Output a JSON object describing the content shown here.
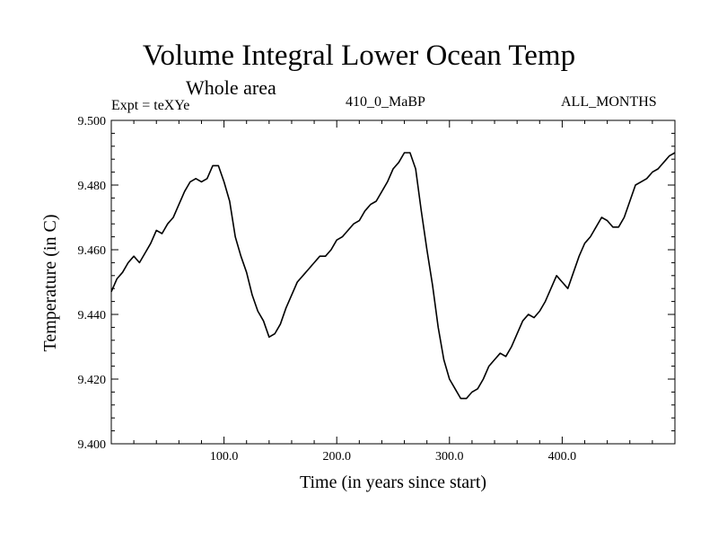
{
  "chart_data": {
    "type": "line",
    "title": "Volume Integral Lower Ocean Temp",
    "subtitle": "Whole area",
    "info_left": "Expt = teXYe",
    "info_center": "410_0_MaBP",
    "info_right": "ALL_MONTHS",
    "xlabel": "Time (in years since start)",
    "ylabel": "Temperature (in C)",
    "xlim": [
      0,
      500
    ],
    "ylim": [
      9.4,
      9.5
    ],
    "x_ticks": [
      100,
      200,
      300,
      400
    ],
    "x_tick_labels": [
      "100.0",
      "200.0",
      "300.0",
      "400.0"
    ],
    "y_ticks": [
      9.4,
      9.42,
      9.44,
      9.46,
      9.48,
      9.5
    ],
    "y_tick_labels": [
      "9.400",
      "9.420",
      "9.440",
      "9.460",
      "9.480",
      "9.500"
    ],
    "grid": false,
    "series": [
      {
        "color": "#000000",
        "x": [
          0,
          5,
          10,
          15,
          20,
          25,
          30,
          35,
          40,
          45,
          50,
          55,
          60,
          65,
          70,
          75,
          80,
          85,
          90,
          95,
          100,
          105,
          110,
          115,
          120,
          125,
          130,
          135,
          140,
          145,
          150,
          155,
          160,
          165,
          170,
          175,
          180,
          185,
          190,
          195,
          200,
          205,
          210,
          215,
          220,
          225,
          230,
          235,
          240,
          245,
          250,
          255,
          260,
          265,
          270,
          275,
          280,
          285,
          290,
          295,
          300,
          305,
          310,
          315,
          320,
          325,
          330,
          335,
          340,
          345,
          350,
          355,
          360,
          365,
          370,
          375,
          380,
          385,
          390,
          395,
          400,
          405,
          410,
          415,
          420,
          425,
          430,
          435,
          440,
          445,
          450,
          455,
          460,
          465,
          470,
          475,
          480,
          485,
          490,
          495,
          500
        ],
        "y": [
          9.447,
          9.451,
          9.453,
          9.456,
          9.458,
          9.456,
          9.459,
          9.462,
          9.466,
          9.465,
          9.468,
          9.47,
          9.474,
          9.478,
          9.481,
          9.482,
          9.481,
          9.482,
          9.486,
          9.486,
          9.481,
          9.475,
          9.464,
          9.458,
          9.453,
          9.446,
          9.441,
          9.438,
          9.433,
          9.434,
          9.437,
          9.442,
          9.446,
          9.45,
          9.452,
          9.454,
          9.456,
          9.458,
          9.458,
          9.46,
          9.463,
          9.464,
          9.466,
          9.468,
          9.469,
          9.472,
          9.474,
          9.475,
          9.478,
          9.481,
          9.485,
          9.487,
          9.49,
          9.49,
          9.485,
          9.472,
          9.46,
          9.449,
          9.436,
          9.426,
          9.42,
          9.417,
          9.414,
          9.414,
          9.416,
          9.417,
          9.42,
          9.424,
          9.426,
          9.428,
          9.427,
          9.43,
          9.434,
          9.438,
          9.44,
          9.439,
          9.441,
          9.444,
          9.448,
          9.452,
          9.45,
          9.448,
          9.453,
          9.458,
          9.462,
          9.464,
          9.467,
          9.47,
          9.469,
          9.467,
          9.467,
          9.47,
          9.475,
          9.48,
          9.481,
          9.482,
          9.484,
          9.485,
          9.487,
          9.489,
          9.49
        ]
      }
    ]
  }
}
